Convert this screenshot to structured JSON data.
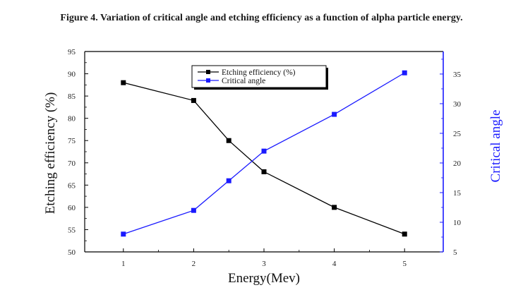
{
  "figure_title": "Figure 4. Variation of critical angle and etching efficiency as a function of alpha particle energy.",
  "chart_data": {
    "type": "line",
    "x": [
      1,
      2,
      2.5,
      3,
      4,
      5
    ],
    "xlabel": "Energy(Mev)",
    "xlim": [
      0.45,
      5.55
    ],
    "xticks": [
      1,
      2,
      3,
      4,
      5
    ],
    "ylabel_left": "Etching efficiency (%)",
    "ylim_left": [
      50,
      95
    ],
    "yticks_left": [
      50,
      55,
      60,
      65,
      70,
      75,
      80,
      85,
      90,
      95
    ],
    "ylabel_right": "Critical angle",
    "ylim_right": [
      5,
      38.8
    ],
    "yticks_right": [
      5,
      10,
      15,
      20,
      25,
      30,
      35
    ],
    "grid": false,
    "legend_position": "top-center",
    "series": [
      {
        "name": "Etching efficiency (%)",
        "axis": "left",
        "color": "#000000",
        "marker": "square",
        "values": [
          88,
          84,
          75,
          68,
          60,
          54
        ]
      },
      {
        "name": "Critical angle",
        "axis": "right",
        "color": "#1a1aff",
        "marker": "square",
        "values": [
          8,
          12,
          17,
          22,
          28.2,
          35.2
        ]
      }
    ],
    "colors": {
      "left_axis": "#000000",
      "right_axis": "#1a1aff"
    }
  }
}
